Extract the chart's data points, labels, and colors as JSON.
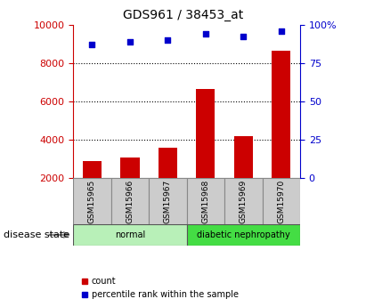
{
  "title": "GDS961 / 38453_at",
  "samples": [
    "GSM15965",
    "GSM15966",
    "GSM15967",
    "GSM15968",
    "GSM15969",
    "GSM15970"
  ],
  "counts": [
    2900,
    3080,
    3600,
    6620,
    4200,
    8620
  ],
  "percentiles": [
    87,
    89,
    90,
    94,
    92,
    96
  ],
  "disease_groups": [
    {
      "label": "normal",
      "start": 0,
      "end": 3,
      "color": "#b8f0b8"
    },
    {
      "label": "diabetic nephropathy",
      "start": 3,
      "end": 6,
      "color": "#44dd44"
    }
  ],
  "left_ylim": [
    2000,
    10000
  ],
  "right_ylim": [
    0,
    100
  ],
  "left_yticks": [
    2000,
    4000,
    6000,
    8000,
    10000
  ],
  "right_yticks": [
    0,
    25,
    50,
    75,
    100
  ],
  "right_yticklabels": [
    "0",
    "25",
    "50",
    "75",
    "100%"
  ],
  "bar_color": "#cc0000",
  "scatter_color": "#0000cc",
  "bar_width": 0.5,
  "background_color": "#ffffff",
  "label_count": "count",
  "label_percentile": "percentile rank within the sample",
  "disease_label": "disease state"
}
